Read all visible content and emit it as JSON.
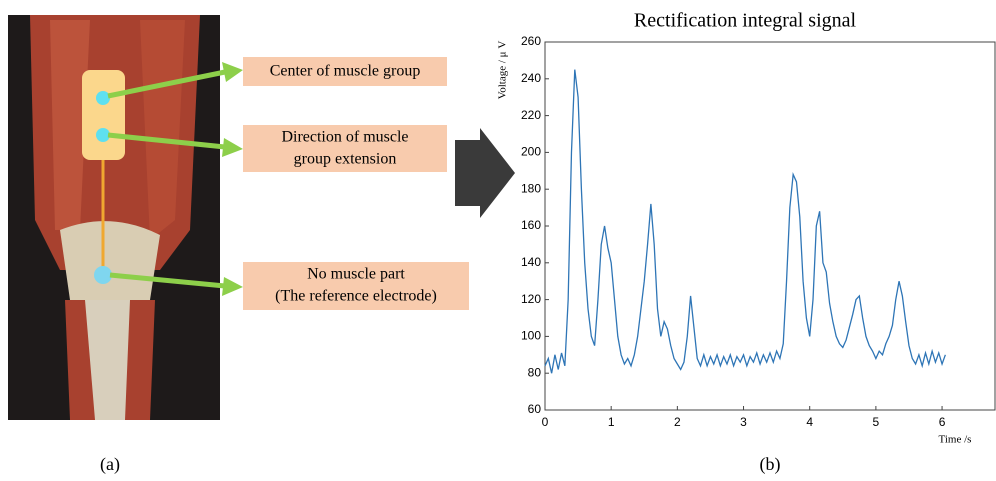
{
  "diagram": {
    "labels": [
      [
        "Center of muscle group"
      ],
      [
        "Direction of muscle",
        "group extension"
      ],
      [
        "No muscle part",
        "(The reference electrode)"
      ]
    ],
    "caption": "(a)"
  },
  "chart_data": {
    "type": "line",
    "title": "Rectification integral signal",
    "caption": "(b)",
    "xlabel": "Time /s",
    "ylabel": "Voltage / μ V",
    "xlim": [
      0,
      6.8
    ],
    "xticks": [
      0,
      1,
      2,
      3,
      4,
      5,
      6
    ],
    "ylim": [
      60,
      260
    ],
    "yticks": [
      60,
      80,
      100,
      120,
      140,
      160,
      180,
      200,
      220,
      240,
      260
    ],
    "color": "#2e75b6",
    "x": [
      0,
      0.05,
      0.1,
      0.15,
      0.2,
      0.25,
      0.3,
      0.35,
      0.4,
      0.45,
      0.5,
      0.55,
      0.6,
      0.65,
      0.7,
      0.75,
      0.8,
      0.85,
      0.9,
      0.95,
      1,
      1.05,
      1.1,
      1.15,
      1.2,
      1.25,
      1.3,
      1.35,
      1.4,
      1.45,
      1.5,
      1.55,
      1.6,
      1.65,
      1.7,
      1.75,
      1.8,
      1.85,
      1.9,
      1.95,
      2,
      2.05,
      2.1,
      2.15,
      2.2,
      2.25,
      2.3,
      2.35,
      2.4,
      2.45,
      2.5,
      2.55,
      2.6,
      2.65,
      2.7,
      2.75,
      2.8,
      2.85,
      2.9,
      2.95,
      3,
      3.05,
      3.1,
      3.15,
      3.2,
      3.25,
      3.3,
      3.35,
      3.4,
      3.45,
      3.5,
      3.55,
      3.6,
      3.65,
      3.7,
      3.75,
      3.8,
      3.85,
      3.9,
      3.95,
      4,
      4.05,
      4.1,
      4.15,
      4.2,
      4.25,
      4.3,
      4.35,
      4.4,
      4.45,
      4.5,
      4.55,
      4.6,
      4.65,
      4.7,
      4.75,
      4.8,
      4.85,
      4.9,
      4.95,
      5,
      5.05,
      5.1,
      5.15,
      5.2,
      5.25,
      5.3,
      5.35,
      5.4,
      5.45,
      5.5,
      5.55,
      5.6,
      5.65,
      5.7,
      5.75,
      5.8,
      5.85,
      5.9,
      5.95,
      6,
      6.05
    ],
    "values": [
      84,
      88,
      80,
      90,
      82,
      91,
      84,
      120,
      200,
      245,
      230,
      180,
      140,
      115,
      100,
      95,
      120,
      150,
      160,
      148,
      140,
      120,
      100,
      90,
      85,
      88,
      84,
      90,
      100,
      115,
      130,
      150,
      172,
      150,
      115,
      100,
      108,
      104,
      95,
      88,
      85,
      82,
      86,
      100,
      122,
      105,
      88,
      84,
      90,
      84,
      89,
      85,
      90,
      84,
      89,
      85,
      90,
      84,
      89,
      86,
      90,
      84,
      89,
      86,
      91,
      85,
      90,
      86,
      91,
      86,
      92,
      88,
      96,
      130,
      170,
      188,
      184,
      165,
      130,
      110,
      100,
      120,
      160,
      168,
      140,
      135,
      118,
      108,
      100,
      96,
      94,
      98,
      105,
      112,
      120,
      122,
      110,
      100,
      95,
      92,
      88,
      92,
      90,
      96,
      100,
      106,
      120,
      130,
      122,
      108,
      95,
      88,
      85,
      90,
      84,
      91,
      85,
      92,
      86,
      91,
      85,
      90
    ]
  }
}
